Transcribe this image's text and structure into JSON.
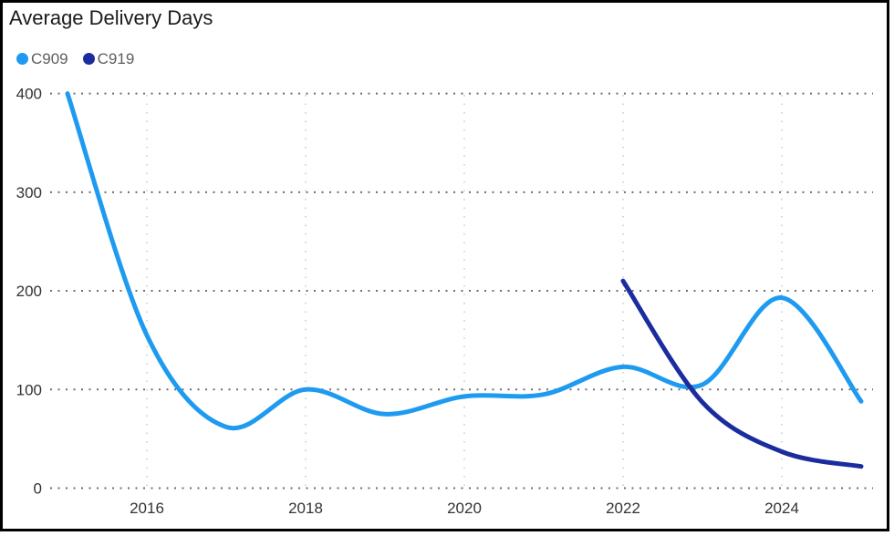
{
  "card": {
    "title": "Average Delivery Days"
  },
  "legend": {
    "items": [
      {
        "label": "C909",
        "color": "#1E9BF0"
      },
      {
        "label": "C919",
        "color": "#1B2C9E"
      }
    ]
  },
  "chart_data": {
    "type": "line",
    "title": "Average Delivery Days",
    "xlabel": "",
    "ylabel": "",
    "smooth": true,
    "grid": "dotted",
    "legend_position": "top-left",
    "xlim": [
      2015,
      2025
    ],
    "ylim": [
      0,
      400
    ],
    "x_ticks": [
      2016,
      2018,
      2020,
      2022,
      2024
    ],
    "y_ticks": [
      0,
      100,
      200,
      300,
      400
    ],
    "series": [
      {
        "name": "C909",
        "color": "#1E9BF0",
        "x": [
          2015,
          2016,
          2017,
          2018,
          2019,
          2020,
          2021,
          2022,
          2023,
          2024,
          2025
        ],
        "values": [
          400,
          155,
          62,
          100,
          75,
          93,
          95,
          123,
          105,
          193,
          88
        ]
      },
      {
        "name": "C919",
        "color": "#1B2C9E",
        "x": [
          2022,
          2023,
          2024,
          2025
        ],
        "values": [
          210,
          87,
          37,
          22
        ]
      }
    ]
  }
}
